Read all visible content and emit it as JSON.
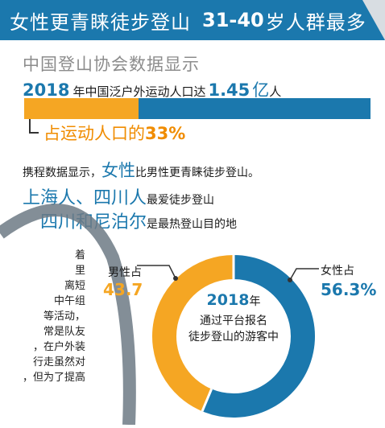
{
  "header": {
    "title_main": "女性更青睐徒步登山",
    "title_num": "31-40",
    "title_rest": "岁人群最多"
  },
  "source": "中国登山协会数据显示",
  "population": {
    "year": "2018",
    "text_mid": "年中国泛户外运动人口达",
    "value": "1.45",
    "unit": "亿",
    "text_tail": "人",
    "share_label": "占运动人口的",
    "share_value": "33%",
    "share_fraction": 0.33
  },
  "ctrip": {
    "prefix": "携程数据显示，",
    "highlight": "女性",
    "suffix": "比男性更青睐徒步登山。"
  },
  "preference1": {
    "highlight": "上海人、四川人",
    "suffix": "最爱徒步登山"
  },
  "preference2": {
    "highlight": "四川和尼泊尔",
    "suffix": "是最热登山目的地"
  },
  "article_lines": [
    "着",
    "里",
    "离短",
    "中午组",
    "等活动，",
    "常是队友",
    "，在户外装",
    "行走虽然对",
    "，但为了提高"
  ],
  "chart_data": {
    "type": "pie",
    "title": "2018年 通过平台报名徒步登山的游客中",
    "center_year": "2018",
    "center_year_unit": "年",
    "center_line2": "通过平台报名",
    "center_line3": "徒步登山的游客中",
    "slices": [
      {
        "label": "女性占",
        "display": "56.3%",
        "value": 56.3,
        "color": "#1b78ad"
      },
      {
        "label": "男性占",
        "display": "43.7",
        "value": 43.7,
        "color": "#f5a623"
      }
    ]
  },
  "colors": {
    "blue": "#1b78ad",
    "orange": "#f5a623",
    "share_text": "#f08c00",
    "gray": "#8c8c8c"
  }
}
